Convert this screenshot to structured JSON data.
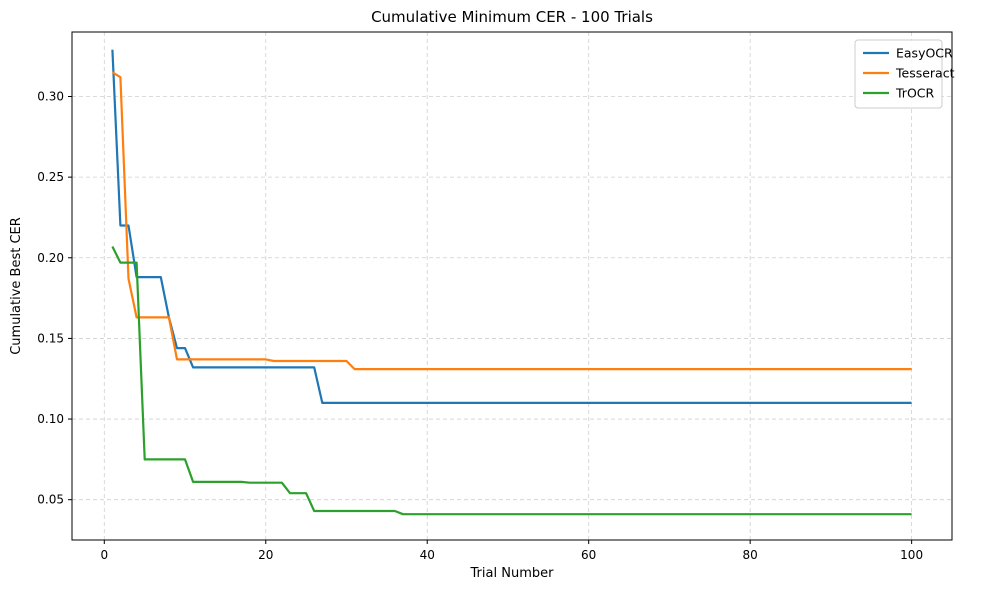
{
  "chart_data": {
    "type": "line",
    "title": "Cumulative Minimum CER - 100 Trials",
    "xlabel": "Trial Number",
    "ylabel": "Cumulative Best CER",
    "xlim": [
      -4,
      105
    ],
    "ylim": [
      0.025,
      0.34
    ],
    "xticks": [
      0,
      20,
      40,
      60,
      80,
      100
    ],
    "yticks": [
      0.05,
      0.1,
      0.15,
      0.2,
      0.25,
      0.3
    ],
    "xtick_labels": [
      "0",
      "20",
      "40",
      "60",
      "80",
      "100"
    ],
    "ytick_labels": [
      "0.05",
      "0.10",
      "0.15",
      "0.20",
      "0.25",
      "0.30"
    ],
    "grid": true,
    "legend_position": "top-right",
    "series": [
      {
        "name": "EasyOCR",
        "color": "#1f77b4",
        "points": [
          [
            1,
            0.329
          ],
          [
            2,
            0.22
          ],
          [
            3,
            0.22
          ],
          [
            4,
            0.188
          ],
          [
            7,
            0.188
          ],
          [
            8,
            0.163
          ],
          [
            9,
            0.144
          ],
          [
            10,
            0.144
          ],
          [
            11,
            0.132
          ],
          [
            26,
            0.132
          ],
          [
            27,
            0.11
          ],
          [
            100,
            0.11
          ]
        ]
      },
      {
        "name": "Tesseract",
        "color": "#ff7f0e",
        "points": [
          [
            1,
            0.315
          ],
          [
            2,
            0.312
          ],
          [
            3,
            0.187
          ],
          [
            4,
            0.163
          ],
          [
            8,
            0.163
          ],
          [
            9,
            0.137
          ],
          [
            20,
            0.137
          ],
          [
            21,
            0.136
          ],
          [
            30,
            0.136
          ],
          [
            31,
            0.131
          ],
          [
            100,
            0.131
          ]
        ]
      },
      {
        "name": "TrOCR",
        "color": "#2ca02c",
        "points": [
          [
            1,
            0.207
          ],
          [
            2,
            0.197
          ],
          [
            4,
            0.197
          ],
          [
            5,
            0.075
          ],
          [
            10,
            0.075
          ],
          [
            11,
            0.061
          ],
          [
            17,
            0.061
          ],
          [
            18,
            0.0605
          ],
          [
            22,
            0.0605
          ],
          [
            23,
            0.054
          ],
          [
            25,
            0.054
          ],
          [
            26,
            0.043
          ],
          [
            36,
            0.043
          ],
          [
            37,
            0.041
          ],
          [
            100,
            0.041
          ]
        ]
      }
    ]
  }
}
